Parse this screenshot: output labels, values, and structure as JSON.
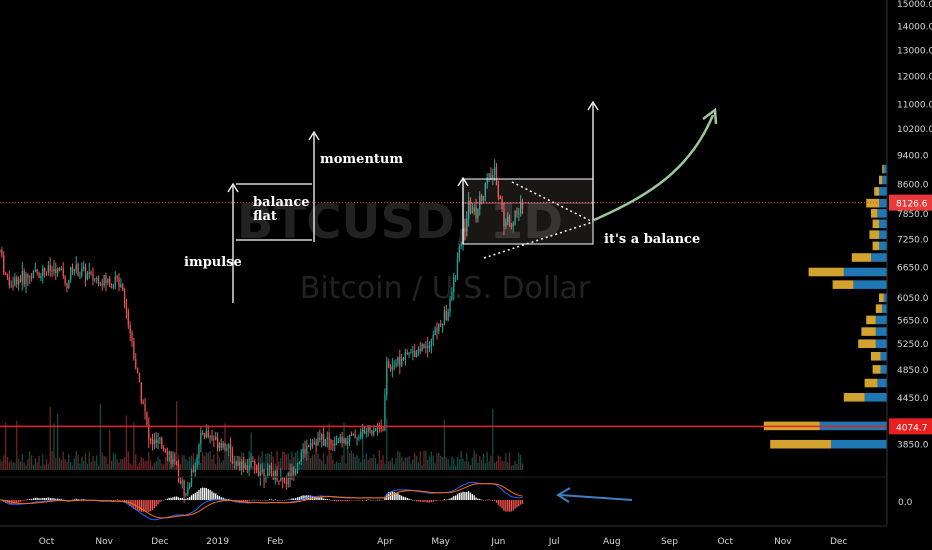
{
  "chart_data": {
    "type": "candlestick",
    "watermark": {
      "symbol": "BTCUSD, 1D",
      "name": "Bitcoin / U.S. Dollar"
    },
    "y_axis": {
      "min": 3650,
      "max": 15000,
      "scale": "log",
      "ticks": [
        "15000.0",
        "14000.0",
        "13000.0",
        "12000.0",
        "11000.0",
        "10200.0",
        "9400.0",
        "8600.0",
        "7850.0",
        "7250.0",
        "6650.0",
        "6050.0",
        "5650.0",
        "5250.0",
        "4850.0",
        "4450.0",
        "3850.0"
      ]
    },
    "x_axis": {
      "start": "2018-09-06",
      "end": "2019-12-27",
      "ticks": [
        {
          "label": "Oct",
          "date": "2018-10-01"
        },
        {
          "label": "Nov",
          "date": "2018-11-01"
        },
        {
          "label": "Dec",
          "date": "2018-12-01"
        },
        {
          "label": "2019",
          "date": "2019-01-01"
        },
        {
          "label": "Feb",
          "date": "2019-02-01"
        },
        {
          "label": "Apr",
          "date": "2019-04-01"
        },
        {
          "label": "May",
          "date": "2019-05-01"
        },
        {
          "label": "Jun",
          "date": "2019-06-01"
        },
        {
          "label": "Jul",
          "date": "2019-07-01"
        },
        {
          "label": "Aug",
          "date": "2019-08-01"
        },
        {
          "label": "Sep",
          "date": "2019-09-01"
        },
        {
          "label": "Oct",
          "date": "2019-10-01"
        },
        {
          "label": "Nov",
          "date": "2019-11-01"
        },
        {
          "label": "Dec",
          "date": "2019-12-01"
        }
      ]
    },
    "price_path": [
      [
        "2018-09-06",
        7000
      ],
      [
        "2018-09-10",
        6350
      ],
      [
        "2018-09-20",
        6450
      ],
      [
        "2018-09-30",
        6600
      ],
      [
        "2018-10-10",
        6550
      ],
      [
        "2018-10-11",
        6250
      ],
      [
        "2018-10-15",
        6650
      ],
      [
        "2018-10-25",
        6450
      ],
      [
        "2018-11-05",
        6350
      ],
      [
        "2018-11-10",
        6400
      ],
      [
        "2018-11-14",
        5650
      ],
      [
        "2018-11-19",
        4750
      ],
      [
        "2018-11-22",
        4400
      ],
      [
        "2018-11-25",
        3900
      ],
      [
        "2018-12-05",
        3800
      ],
      [
        "2018-12-15",
        3300
      ],
      [
        "2018-12-20",
        3650
      ],
      [
        "2018-12-24",
        4000
      ],
      [
        "2019-01-05",
        3850
      ],
      [
        "2019-01-10",
        3650
      ],
      [
        "2019-01-20",
        3600
      ],
      [
        "2019-02-07",
        3450
      ],
      [
        "2019-02-20",
        3900
      ],
      [
        "2019-03-10",
        3900
      ],
      [
        "2019-03-31",
        4100
      ],
      [
        "2019-04-02",
        4900
      ],
      [
        "2019-04-15",
        5100
      ],
      [
        "2019-04-25",
        5300
      ],
      [
        "2019-05-05",
        5800
      ],
      [
        "2019-05-12",
        7200
      ],
      [
        "2019-05-16",
        8000
      ],
      [
        "2019-05-20",
        7900
      ],
      [
        "2019-05-26",
        8700
      ],
      [
        "2019-05-30",
        8900
      ],
      [
        "2019-06-04",
        7700
      ],
      [
        "2019-06-08",
        7650
      ],
      [
        "2019-06-12",
        7900
      ],
      [
        "2019-06-14",
        8150
      ]
    ],
    "price_lines": [
      {
        "value": 8126.6,
        "label": "8126.6",
        "color": "#e83a3a"
      },
      {
        "value": 4074.7,
        "label": "4074.7",
        "color": "#e82020"
      }
    ],
    "annotations": {
      "impulse": "impulse",
      "balance_flat_1": "balance",
      "balance_flat_2": "flat",
      "momentum": "momentum",
      "balance": "it's a balance"
    },
    "indicator": {
      "name": "MACD",
      "tick": "0.0",
      "macd_color": "#2962ff",
      "signal_color": "#ff6d00"
    },
    "volume_profile": [
      {
        "price": 3850,
        "up": 0.38,
        "down": 0.35
      },
      {
        "price": 4074,
        "up": 0.35,
        "down": 0.42
      },
      {
        "price": 4450,
        "up": 0.13,
        "down": 0.14
      },
      {
        "price": 4650,
        "up": 0.08,
        "down": 0.06
      },
      {
        "price": 4850,
        "up": 0.05,
        "down": 0.04
      },
      {
        "price": 5050,
        "up": 0.06,
        "down": 0.04
      },
      {
        "price": 5250,
        "up": 0.11,
        "down": 0.07
      },
      {
        "price": 5450,
        "up": 0.09,
        "down": 0.07
      },
      {
        "price": 5650,
        "up": 0.06,
        "down": 0.07
      },
      {
        "price": 5850,
        "up": 0.04,
        "down": 0.03
      },
      {
        "price": 6050,
        "up": 0.03,
        "down": 0.02
      },
      {
        "price": 6300,
        "up": 0.13,
        "down": 0.21
      },
      {
        "price": 6550,
        "up": 0.22,
        "down": 0.27
      },
      {
        "price": 6850,
        "up": 0.12,
        "down": 0.1
      },
      {
        "price": 7100,
        "up": 0.04,
        "down": 0.05
      },
      {
        "price": 7350,
        "up": 0.06,
        "down": 0.05
      },
      {
        "price": 7600,
        "up": 0.04,
        "down": 0.05
      },
      {
        "price": 7850,
        "up": 0.04,
        "down": 0.06
      },
      {
        "price": 8100,
        "up": 0.08,
        "down": 0.05
      },
      {
        "price": 8400,
        "up": 0.03,
        "down": 0.05
      },
      {
        "price": 8700,
        "up": 0.02,
        "down": 0.03
      },
      {
        "price": 9000,
        "up": 0.01,
        "down": 0.02
      }
    ],
    "colors": {
      "bull": "#26a69a",
      "bear": "#ef5350",
      "profile_up": "#d4a22e",
      "profile_down": "#1f77b4",
      "projection": "#8fbc8f",
      "background": "#000000"
    }
  }
}
